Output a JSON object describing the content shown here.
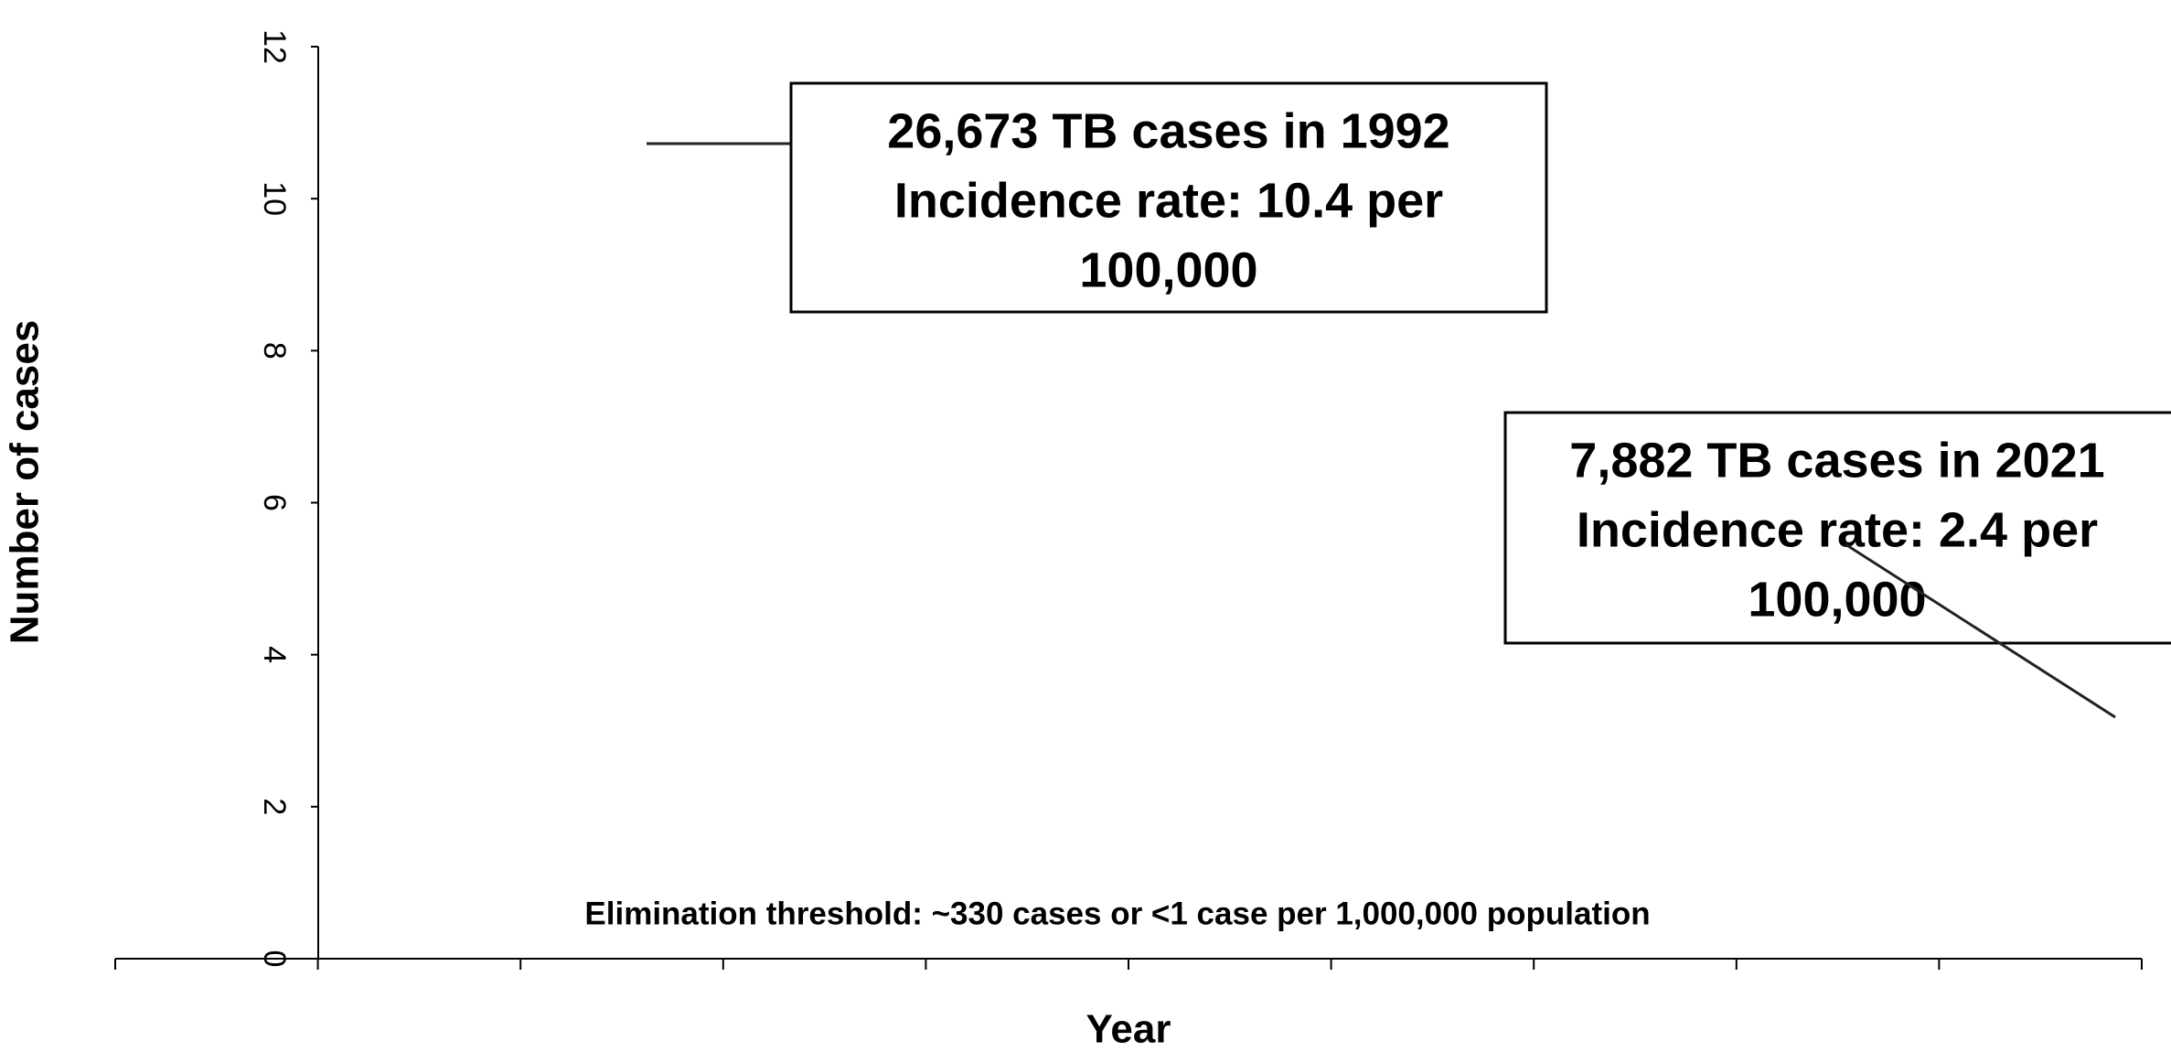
{
  "chart_data": {
    "type": "line",
    "y_label": "Number of cases",
    "x_label": "Year",
    "ylim": [
      0,
      12
    ],
    "yticks": [
      0,
      2,
      4,
      6,
      8,
      10,
      12
    ],
    "annotations": [
      {
        "lines": [
          "26,673 TB cases in 1992",
          "Incidence rate:  10.4 per",
          "100,000"
        ]
      },
      {
        "lines": [
          "7,882 TB cases in 2021",
          "Incidence rate:  2.4 per",
          "100,000"
        ]
      }
    ],
    "threshold_note": "Elimination threshold:  ~330 cases or <1 case per 1,000,000 population"
  }
}
